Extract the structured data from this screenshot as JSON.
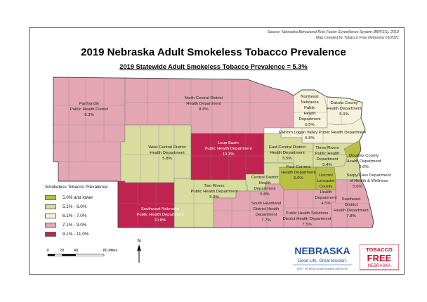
{
  "header": {
    "source_line1": "Source: Nebraska Behavioral Risk Factor Surveillance System (BRFSS), 2019",
    "source_line2": "Map Created by Tobacco Free Nebraska 03/2021",
    "title": "2019 Nebraska Adult Smokeless Tobacco Prevalence",
    "subtitle": "2019 Statewide Adult Smokeless Tobacco Prevalence = 5.3%"
  },
  "colors": {
    "class1": "#b8bf43",
    "class2": "#d8dc9e",
    "class3": "#f5f2d9",
    "class4": "#e3a6b2",
    "class5": "#c0234f",
    "border": "#7a7a7a",
    "outline": "#444444"
  },
  "legend": {
    "title": "Smokeless Tobacco Prevalence",
    "items": [
      {
        "label": "5.0% and lower",
        "color": "#b8bf43"
      },
      {
        "label": "5.1% - 6.0%",
        "color": "#d8dc9e"
      },
      {
        "label": "6.1% - 7.0%",
        "color": "#f5f2d9"
      },
      {
        "label": "7.1% - 9.0%",
        "color": "#e3a6b2"
      },
      {
        "label": "9.1% - 11.0%",
        "color": "#c0234f"
      }
    ]
  },
  "districts": {
    "panhandle": {
      "name1": "Panhandle",
      "name2": "Public Health District",
      "value": "9.3%"
    },
    "north_central": {
      "name1": "North Central District",
      "name2": "Health Department",
      "value": "8.8%"
    },
    "northeast": {
      "name1": "Northeast",
      "name2": "Nebraska",
      "name3": "Public",
      "name4": "Health",
      "name5": "Department",
      "value": "6.5%"
    },
    "dakota": {
      "name1": "Dakota County",
      "name2": "Health Department",
      "value": "5.9%"
    },
    "elkhorn": {
      "name1": "Elkhorn Logan Valley Public Health Department",
      "value": "6.8%"
    },
    "west_central": {
      "name1": "West Central District",
      "name2": "Health Department",
      "value": "5.8%"
    },
    "loup_basin": {
      "name1": "Loup Basin",
      "name2": "Public Health Department",
      "value": "10.3%"
    },
    "east_central": {
      "name1": "East Central District",
      "name2": "Health Department",
      "value": "5.5%"
    },
    "three_rivers": {
      "name1": "Three Rivers",
      "name2": "Public Health",
      "name3": "Department",
      "value": "5.4%"
    },
    "douglas": {
      "name1": "Douglas County",
      "name2": "Health Department",
      "value": "3.6%"
    },
    "four_corners": {
      "name1": "Four Corners",
      "name2": "Health Department",
      "value": "6.0%"
    },
    "sarpy_cass": {
      "name1": "Sarpy/Cass Department",
      "name2": "of Health & Wellness",
      "value": "5.6%"
    },
    "lancaster": {
      "name1": "Lincoln/",
      "name2": "Lancaster",
      "name3": "County",
      "name4": "Health",
      "name5": "Department",
      "value": "4.5%"
    },
    "central": {
      "name1": "Central District",
      "name2": "Health",
      "name3": "Department",
      "value": "5.8%"
    },
    "two_rivers": {
      "name1": "Two Rivers",
      "name2": "Public Health Department",
      "value": "5.9%"
    },
    "southwest": {
      "name1": "Southwest Nebraska",
      "name2": "Public Health Department",
      "value": "10.8%"
    },
    "south_heartland": {
      "name1": "South Heartland",
      "name2": "District Health",
      "name3": "Department",
      "value": "7.7%"
    },
    "public_health_solutions": {
      "name1": "Public Health Solutions",
      "name2": "District Health Department",
      "value": "7.5%"
    },
    "southeast": {
      "name1": "Southeast",
      "name2": "District",
      "name3": "Health Department",
      "value": "7.8%"
    }
  },
  "scale_bar": {
    "t0": "0",
    "t1": "20",
    "t2": "40",
    "t3": "80 Miles"
  },
  "north_arrow": {
    "label": "N"
  },
  "logos": {
    "nebraska_word": "NEBRASKA",
    "nebraska_tagline": "Good Life. Great Mission.",
    "nebraska_dept": "DEPT. OF HEALTH AND HUMAN SERVICES",
    "tf_line1": "TOBACCO",
    "tf_line2": "FREE",
    "tf_line3": "NEBRASKA"
  }
}
